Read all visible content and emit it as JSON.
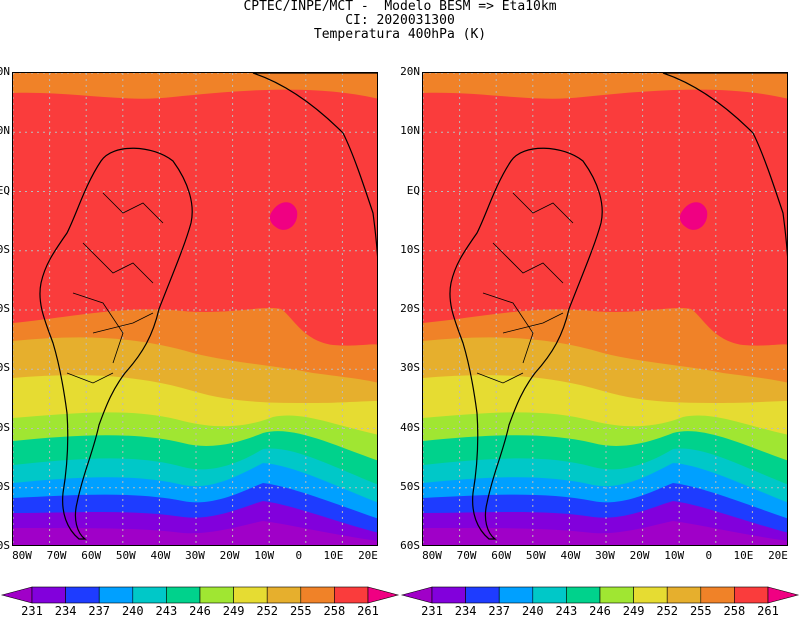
{
  "header": {
    "line1": "CPTEC/INPE/MCT -  Modelo BESM => Eta10km",
    "line2": "CI: 2020031300",
    "line3": "Temperatura 400hPa (K)"
  },
  "map": {
    "lat_labels": [
      "20N",
      "10N",
      "EQ",
      "10S",
      "20S",
      "30S",
      "40S",
      "50S",
      "60S"
    ],
    "lon_labels": [
      "80W",
      "70W",
      "60W",
      "50W",
      "40W",
      "30W",
      "20W",
      "10W",
      "0",
      "10E",
      "20E"
    ],
    "grid": true
  },
  "legend": {
    "levels": [
      "231",
      "234",
      "237",
      "240",
      "243",
      "246",
      "249",
      "252",
      "255",
      "258",
      "261"
    ],
    "colors": [
      "#a000c8",
      "#8200dc",
      "#1e3cff",
      "#00a0ff",
      "#00c8c8",
      "#00d28c",
      "#a0e632",
      "#e6dc32",
      "#e6af2d",
      "#f08228",
      "#fa3c3c",
      "#f00082"
    ]
  }
}
